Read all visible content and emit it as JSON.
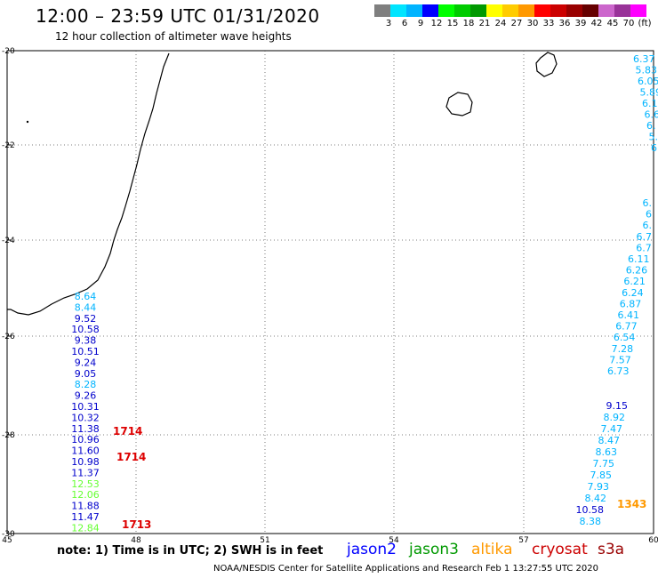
{
  "title": "12:00 – 23:59 UTC 01/31/2020",
  "subtitle": "12 hour collection of altimeter wave heights",
  "color_scale": {
    "colors": [
      "#7f7f7f",
      "#00e5ff",
      "#00b4ff",
      "#0000ff",
      "#00ff00",
      "#00cc00",
      "#009900",
      "#ffff00",
      "#ffcc00",
      "#ff9900",
      "#ff0000",
      "#cc0000",
      "#990000",
      "#660000",
      "#cc66cc",
      "#993399",
      "#ff00ff"
    ],
    "labels": [
      "3",
      "6",
      "9",
      "12",
      "15",
      "18",
      "21",
      "24",
      "27",
      "30",
      "33",
      "36",
      "39",
      "42",
      "45",
      "70",
      "(ft)"
    ]
  },
  "map": {
    "lat_labels": [
      "-20",
      "-22",
      "-24",
      "-26",
      "-28",
      "-30"
    ],
    "lon_labels": [
      "45",
      "48",
      "51",
      "54",
      "57",
      "60"
    ]
  },
  "tracks": {
    "left": [
      {
        "v": "8.64",
        "c": "#00b4ff"
      },
      {
        "v": "8.44",
        "c": "#00b4ff"
      },
      {
        "v": "9.52",
        "c": "#0000cc"
      },
      {
        "v": "10.58",
        "c": "#0000cc"
      },
      {
        "v": "9.38",
        "c": "#0000cc"
      },
      {
        "v": "10.51",
        "c": "#0000cc"
      },
      {
        "v": "9.24",
        "c": "#0000cc"
      },
      {
        "v": "9.05",
        "c": "#0000cc"
      },
      {
        "v": "8.28",
        "c": "#00b4ff"
      },
      {
        "v": "9.26",
        "c": "#0000cc"
      },
      {
        "v": "10.31",
        "c": "#0000cc"
      },
      {
        "v": "10.32",
        "c": "#0000cc"
      },
      {
        "v": "11.38",
        "c": "#0000cc"
      },
      {
        "v": "10.96",
        "c": "#0000cc"
      },
      {
        "v": "11.60",
        "c": "#0000cc"
      },
      {
        "v": "10.98",
        "c": "#0000cc"
      },
      {
        "v": "11.37",
        "c": "#0000cc"
      },
      {
        "v": "12.53",
        "c": "#66ff33"
      },
      {
        "v": "12.06",
        "c": "#66ff33"
      },
      {
        "v": "11.88",
        "c": "#0000cc"
      },
      {
        "v": "11.47",
        "c": "#0000cc"
      },
      {
        "v": "12.84",
        "c": "#66ff33"
      }
    ],
    "left_times": [
      "1714",
      "1714",
      "1713"
    ],
    "right_top": [
      "6.37",
      "5.83",
      "6.05",
      "5.89",
      "6.1",
      "6.6",
      "6.",
      "5.",
      "6."
    ],
    "right_mid": [
      "6.",
      "6",
      "6.",
      "6.7",
      "6.7",
      "6.11",
      "6.26",
      "6.21",
      "6.24",
      "6.87",
      "6.41",
      "6.77",
      "6.54",
      "7.28",
      "7.57",
      "6.73"
    ],
    "right_low": [
      {
        "v": "9.15",
        "c": "#0000cc"
      },
      {
        "v": "8.92",
        "c": "#00b4ff"
      },
      {
        "v": "7.47",
        "c": "#00b4ff"
      },
      {
        "v": "8.47",
        "c": "#00b4ff"
      },
      {
        "v": "8.63",
        "c": "#00b4ff"
      },
      {
        "v": "7.75",
        "c": "#00b4ff"
      },
      {
        "v": "7.85",
        "c": "#00b4ff"
      },
      {
        "v": "7.93",
        "c": "#00b4ff"
      },
      {
        "v": "8.42",
        "c": "#00b4ff"
      },
      {
        "v": "10.58",
        "c": "#0000cc"
      },
      {
        "v": "8.38",
        "c": "#00b4ff"
      }
    ],
    "right_time": "1343"
  },
  "note": "note:  1) Time is in UTC;  2) SWH is in feet",
  "satellites": [
    {
      "name": "jason2",
      "color": "#0000ff"
    },
    {
      "name": "jason3",
      "color": "#009900"
    },
    {
      "name": "altika",
      "color": "#ff9900"
    },
    {
      "name": "cryosat",
      "color": "#cc0000"
    },
    {
      "name": "s3a",
      "color": "#990000"
    }
  ],
  "footer": "NOAA/NESDIS Center for Satellite Applications and Research    Feb  1 13:27:55 UTC 2020"
}
